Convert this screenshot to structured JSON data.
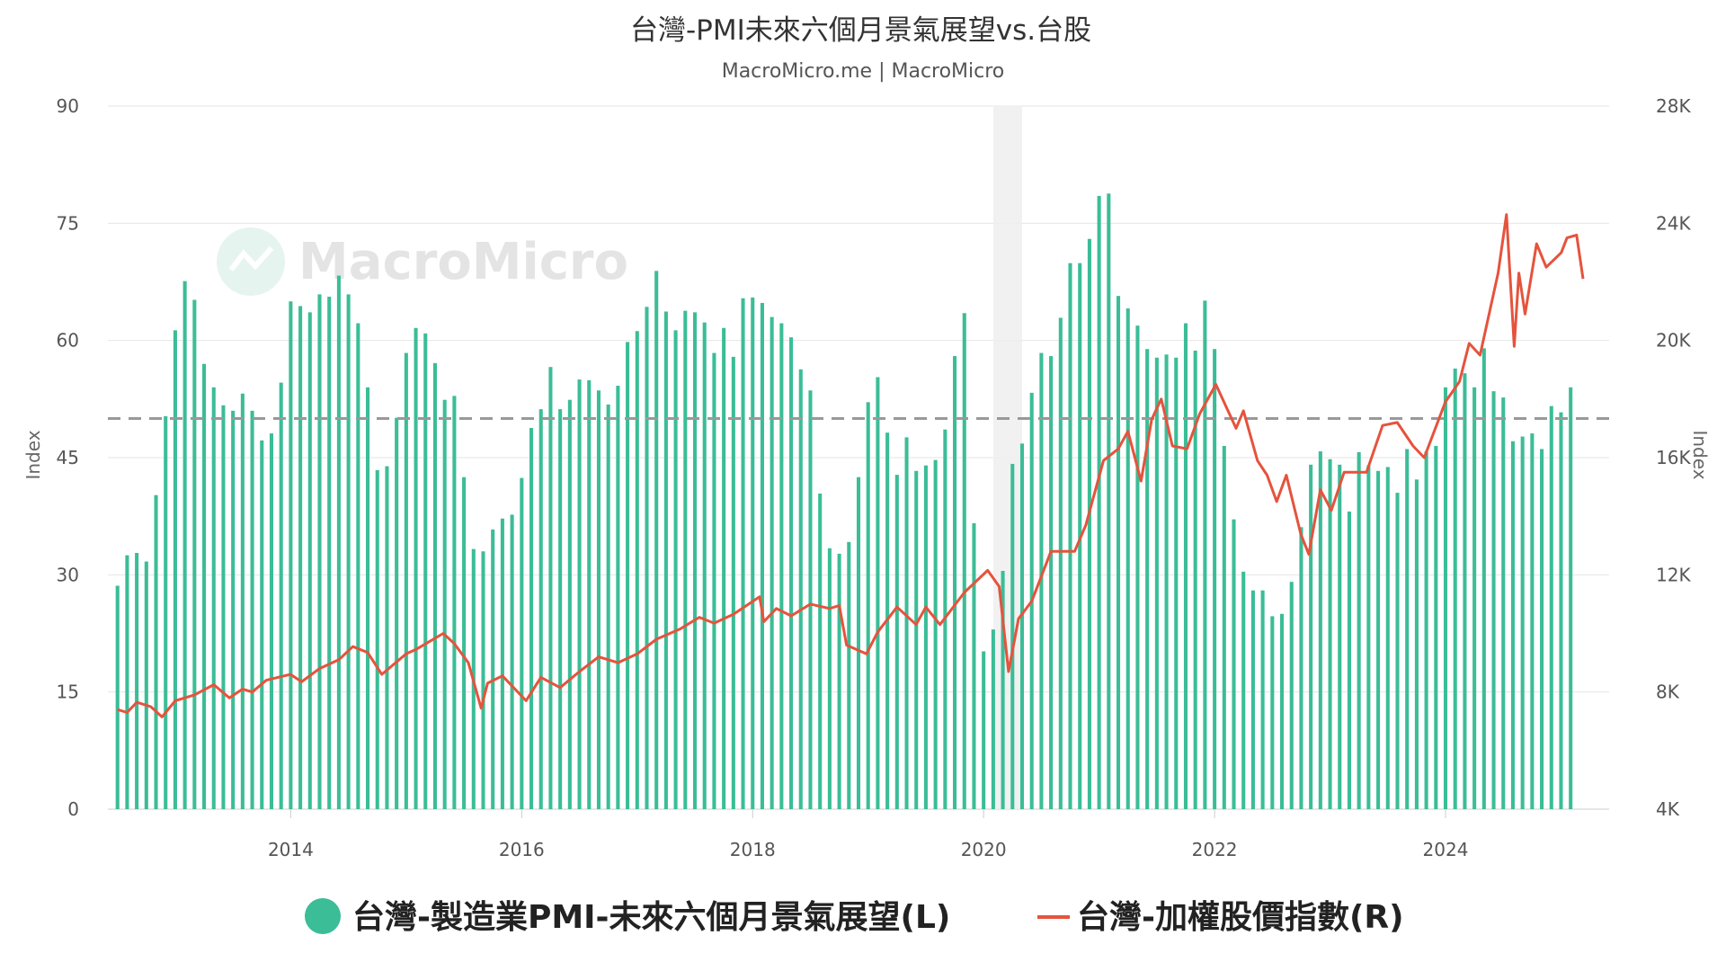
{
  "chart_data": {
    "type": "bar",
    "title": "台灣-PMI未來六個月景氣展望vs.台股",
    "subtitle": "MacroMicro.me | MacroMicro",
    "watermark": "MacroMicro",
    "xlabel": "",
    "ylabel_left": "Index",
    "ylabel_right": "Index",
    "ylim_left": [
      0,
      90
    ],
    "ylim_right": [
      4000,
      28000
    ],
    "left_ticks": [
      "0",
      "15",
      "30",
      "45",
      "60",
      "75",
      "90"
    ],
    "right_ticks": [
      "4K",
      "8K",
      "12K",
      "16K",
      "20K",
      "24K",
      "28K"
    ],
    "x_ticks": [
      "2014",
      "2016",
      "2018",
      "2020",
      "2022",
      "2024"
    ],
    "xlim": [
      "2012-06",
      "2025-06"
    ],
    "grid": true,
    "legend_position": "bottom",
    "reference_line": {
      "value": 50,
      "axis": "left",
      "style": "dashed"
    },
    "recession_band": {
      "start": "2020-02",
      "end": "2020-05"
    },
    "series": [
      {
        "name": "台灣-製造業PMI-未來六個月景氣展望(L)",
        "type": "bar",
        "axis": "left",
        "color": "#3bbd97",
        "start": "2012-07",
        "values": [
          28.6,
          32.5,
          32.8,
          31.7,
          40.2,
          50.3,
          61.3,
          67.6,
          65.2,
          57.0,
          54.0,
          51.7,
          51.0,
          53.2,
          51.0,
          47.2,
          48.1,
          54.6,
          65.0,
          64.4,
          63.6,
          65.9,
          65.6,
          68.3,
          65.9,
          62.2,
          54.0,
          43.4,
          43.9,
          50.1,
          58.4,
          61.6,
          60.9,
          57.1,
          52.4,
          52.9,
          42.5,
          33.3,
          33.0,
          35.8,
          37.2,
          37.7,
          42.4,
          48.8,
          51.2,
          56.6,
          51.2,
          52.4,
          55.0,
          54.9,
          53.6,
          51.8,
          54.2,
          59.8,
          61.2,
          64.3,
          68.9,
          63.7,
          61.3,
          63.8,
          63.6,
          62.3,
          58.4,
          61.6,
          57.9,
          65.4,
          65.5,
          64.8,
          63.0,
          62.2,
          60.4,
          56.3,
          53.6,
          40.4,
          33.4,
          32.7,
          34.2,
          42.5,
          52.1,
          55.3,
          48.2,
          42.8,
          47.6,
          43.3,
          44.0,
          44.7,
          48.6,
          58.0,
          63.5,
          36.6,
          20.2,
          23.0,
          30.5,
          44.2,
          46.8,
          53.3,
          58.4,
          58.0,
          62.9,
          69.9,
          69.9,
          73.0,
          78.5,
          78.8,
          65.7,
          64.1,
          61.9,
          58.9,
          57.8,
          58.2,
          57.8,
          62.2,
          58.7,
          65.1,
          58.9,
          46.5,
          37.1,
          30.4,
          28.0,
          28.0,
          24.7,
          25.0,
          29.1,
          36.1,
          44.1,
          45.8,
          44.8,
          44.1,
          38.1,
          45.7,
          44.0,
          43.3,
          43.8,
          40.5,
          46.1,
          42.2,
          45.8,
          46.5,
          54.0,
          56.4,
          55.8,
          54.0,
          59.0,
          53.5,
          52.7,
          47.1,
          47.7,
          48.1,
          46.1,
          51.6,
          50.8,
          54.0
        ]
      },
      {
        "name": "台灣-加權股價指數(R)",
        "type": "line",
        "axis": "right",
        "color": "#e5533d",
        "points": [
          [
            "2012-07-01",
            7400
          ],
          [
            "2012-08-01",
            7300
          ],
          [
            "2012-09-01",
            7650
          ],
          [
            "2012-10-15",
            7500
          ],
          [
            "2012-11-20",
            7150
          ],
          [
            "2013-01-01",
            7700
          ],
          [
            "2013-03-01",
            7900
          ],
          [
            "2013-05-01",
            8250
          ],
          [
            "2013-06-20",
            7800
          ],
          [
            "2013-08-01",
            8100
          ],
          [
            "2013-09-01",
            8000
          ],
          [
            "2013-10-15",
            8400
          ],
          [
            "2013-12-31",
            8600
          ],
          [
            "2014-02-05",
            8350
          ],
          [
            "2014-04-01",
            8800
          ],
          [
            "2014-06-01",
            9100
          ],
          [
            "2014-07-15",
            9550
          ],
          [
            "2014-08-31",
            9350
          ],
          [
            "2014-10-15",
            8600
          ],
          [
            "2014-12-31",
            9300
          ],
          [
            "2015-02-01",
            9450
          ],
          [
            "2015-04-27",
            10000
          ],
          [
            "2015-06-01",
            9650
          ],
          [
            "2015-07-15",
            9000
          ],
          [
            "2015-08-25",
            7450
          ],
          [
            "2015-09-15",
            8300
          ],
          [
            "2015-11-01",
            8550
          ],
          [
            "2016-01-15",
            7700
          ],
          [
            "2016-03-01",
            8500
          ],
          [
            "2016-05-01",
            8150
          ],
          [
            "2016-07-01",
            8700
          ],
          [
            "2016-09-01",
            9200
          ],
          [
            "2016-11-01",
            9000
          ],
          [
            "2017-01-01",
            9300
          ],
          [
            "2017-03-01",
            9800
          ],
          [
            "2017-05-15",
            10150
          ],
          [
            "2017-07-15",
            10550
          ],
          [
            "2017-09-01",
            10350
          ],
          [
            "2017-11-01",
            10650
          ],
          [
            "2018-01-23",
            11250
          ],
          [
            "2018-02-06",
            10400
          ],
          [
            "2018-03-15",
            10850
          ],
          [
            "2018-05-01",
            10600
          ],
          [
            "2018-07-01",
            11000
          ],
          [
            "2018-09-01",
            10850
          ],
          [
            "2018-10-01",
            10950
          ],
          [
            "2018-10-24",
            9600
          ],
          [
            "2018-12-26",
            9300
          ],
          [
            "2019-02-01",
            10050
          ],
          [
            "2019-04-01",
            10900
          ],
          [
            "2019-05-31",
            10300
          ],
          [
            "2019-07-01",
            10900
          ],
          [
            "2019-08-15",
            10300
          ],
          [
            "2019-11-01",
            11400
          ],
          [
            "2020-01-14",
            12150
          ],
          [
            "2020-02-20",
            11600
          ],
          [
            "2020-03-19",
            8700
          ],
          [
            "2020-04-20",
            10500
          ],
          [
            "2020-06-01",
            11100
          ],
          [
            "2020-08-01",
            12800
          ],
          [
            "2020-10-15",
            12800
          ],
          [
            "2020-11-20",
            13700
          ],
          [
            "2021-01-15",
            15900
          ],
          [
            "2021-03-01",
            16300
          ],
          [
            "2021-04-01",
            16900
          ],
          [
            "2021-05-12",
            15200
          ],
          [
            "2021-06-15",
            17300
          ],
          [
            "2021-07-15",
            18000
          ],
          [
            "2021-08-20",
            16400
          ],
          [
            "2021-10-05",
            16300
          ],
          [
            "2021-11-15",
            17500
          ],
          [
            "2022-01-05",
            18500
          ],
          [
            "2022-03-08",
            17000
          ],
          [
            "2022-04-01",
            17600
          ],
          [
            "2022-05-15",
            15900
          ],
          [
            "2022-06-15",
            15400
          ],
          [
            "2022-07-15",
            14500
          ],
          [
            "2022-08-15",
            15400
          ],
          [
            "2022-09-30",
            13400
          ],
          [
            "2022-10-25",
            12700
          ],
          [
            "2022-12-01",
            14900
          ],
          [
            "2023-01-05",
            14200
          ],
          [
            "2023-02-15",
            15500
          ],
          [
            "2023-04-25",
            15500
          ],
          [
            "2023-06-15",
            17100
          ],
          [
            "2023-07-31",
            17200
          ],
          [
            "2023-09-20",
            16400
          ],
          [
            "2023-10-25",
            16000
          ],
          [
            "2023-12-31",
            17900
          ],
          [
            "2024-02-15",
            18600
          ],
          [
            "2024-03-15",
            19900
          ],
          [
            "2024-04-19",
            19500
          ],
          [
            "2024-06-15",
            22300
          ],
          [
            "2024-07-11",
            24300
          ],
          [
            "2024-08-05",
            19800
          ],
          [
            "2024-08-20",
            22300
          ],
          [
            "2024-09-09",
            20900
          ],
          [
            "2024-10-15",
            23300
          ],
          [
            "2024-11-15",
            22500
          ],
          [
            "2025-01-02",
            23000
          ],
          [
            "2025-01-20",
            23500
          ],
          [
            "2025-02-20",
            23600
          ],
          [
            "2025-03-10",
            22100
          ]
        ]
      }
    ]
  }
}
